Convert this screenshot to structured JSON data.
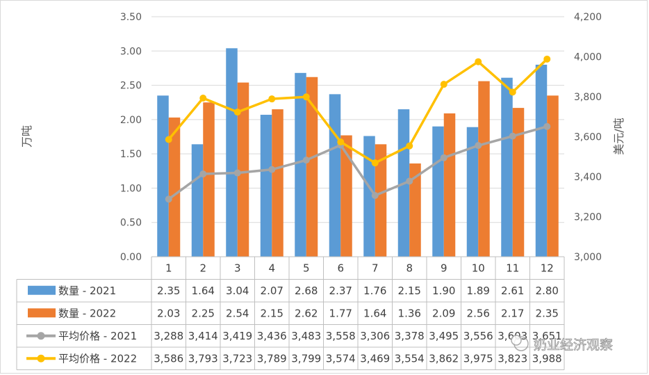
{
  "chart_data": {
    "type": "bar",
    "title": "",
    "categories": [
      "1",
      "2",
      "3",
      "4",
      "5",
      "6",
      "7",
      "8",
      "9",
      "10",
      "11",
      "12"
    ],
    "y_left": {
      "label": "万吨",
      "ticks": [
        "0.00",
        "0.50",
        "1.00",
        "1.50",
        "2.00",
        "2.50",
        "3.00",
        "3.50"
      ],
      "ylim": [
        0,
        3.5
      ]
    },
    "y_right": {
      "label": "美元/吨",
      "ticks": [
        "3,000",
        "3,200",
        "3,400",
        "3,600",
        "3,800",
        "4,000",
        "4,200"
      ],
      "ylim": [
        3000,
        4200
      ]
    },
    "series": [
      {
        "name": "数量 - 2021",
        "type": "bar",
        "axis": "left",
        "color": "#5b9bd5",
        "values": [
          2.35,
          1.64,
          3.04,
          2.07,
          2.68,
          2.37,
          1.76,
          2.15,
          1.9,
          1.89,
          2.61,
          2.8
        ],
        "labels": [
          "2.35",
          "1.64",
          "3.04",
          "2.07",
          "2.68",
          "2.37",
          "1.76",
          "2.15",
          "1.90",
          "1.89",
          "2.61",
          "2.80"
        ]
      },
      {
        "name": "数量 - 2022",
        "type": "bar",
        "axis": "left",
        "color": "#ed7d31",
        "values": [
          2.03,
          2.25,
          2.54,
          2.15,
          2.62,
          1.77,
          1.64,
          1.36,
          2.09,
          2.56,
          2.17,
          2.35
        ],
        "labels": [
          "2.03",
          "2.25",
          "2.54",
          "2.15",
          "2.62",
          "1.77",
          "1.64",
          "1.36",
          "2.09",
          "2.56",
          "2.17",
          "2.35"
        ]
      },
      {
        "name": "平均价格 - 2021",
        "type": "line",
        "axis": "right",
        "color": "#a5a5a5",
        "values": [
          3288,
          3414,
          3419,
          3436,
          3483,
          3558,
          3306,
          3378,
          3495,
          3556,
          3603,
          3651
        ],
        "labels": [
          "3,288",
          "3,414",
          "3,419",
          "3,436",
          "3,483",
          "3,558",
          "3,306",
          "3,378",
          "3,495",
          "3,556",
          "3,603",
          "3,651"
        ]
      },
      {
        "name": "平均价格 - 2022",
        "type": "line",
        "axis": "right",
        "color": "#ffc000",
        "values": [
          3586,
          3793,
          3723,
          3789,
          3799,
          3574,
          3469,
          3554,
          3862,
          3975,
          3823,
          3988
        ],
        "labels": [
          "3,586",
          "3,793",
          "3,723",
          "3,789",
          "3,799",
          "3,574",
          "3,469",
          "3,554",
          "3,862",
          "3,975",
          "3,823",
          "3,988"
        ]
      }
    ],
    "grid": true,
    "legend": "data-table"
  },
  "watermark": {
    "text": "奶业经济观察"
  }
}
